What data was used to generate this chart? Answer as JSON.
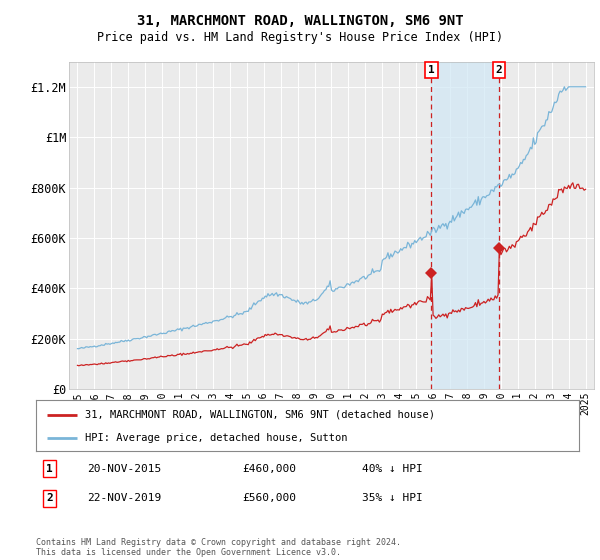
{
  "title": "31, MARCHMONT ROAD, WALLINGTON, SM6 9NT",
  "subtitle": "Price paid vs. HM Land Registry's House Price Index (HPI)",
  "ylim": [
    0,
    1300000
  ],
  "yticks": [
    0,
    200000,
    400000,
    600000,
    800000,
    1000000,
    1200000
  ],
  "ytick_labels": [
    "£0",
    "£200K",
    "£400K",
    "£600K",
    "£800K",
    "£1M",
    "£1.2M"
  ],
  "background_color": "#ffffff",
  "plot_bg_color": "#ebebeb",
  "grid_color": "#ffffff",
  "hpi_color": "#7ab5d8",
  "price_color": "#cc2222",
  "transaction1": {
    "date": "20-NOV-2015",
    "price": 460000,
    "label": "1",
    "pct": "40% ↓ HPI"
  },
  "transaction2": {
    "date": "22-NOV-2019",
    "price": 560000,
    "label": "2",
    "pct": "35% ↓ HPI"
  },
  "legend_label_price": "31, MARCHMONT ROAD, WALLINGTON, SM6 9NT (detached house)",
  "legend_label_hpi": "HPI: Average price, detached house, Sutton",
  "footnote": "Contains HM Land Registry data © Crown copyright and database right 2024.\nThis data is licensed under the Open Government Licence v3.0.",
  "transaction1_year": 2015.9,
  "transaction2_year": 2019.9,
  "xtick_years": [
    1995,
    1996,
    1997,
    1998,
    1999,
    2000,
    2001,
    2002,
    2003,
    2004,
    2005,
    2006,
    2007,
    2008,
    2009,
    2010,
    2011,
    2012,
    2013,
    2014,
    2015,
    2016,
    2017,
    2018,
    2019,
    2020,
    2021,
    2022,
    2023,
    2024,
    2025
  ]
}
